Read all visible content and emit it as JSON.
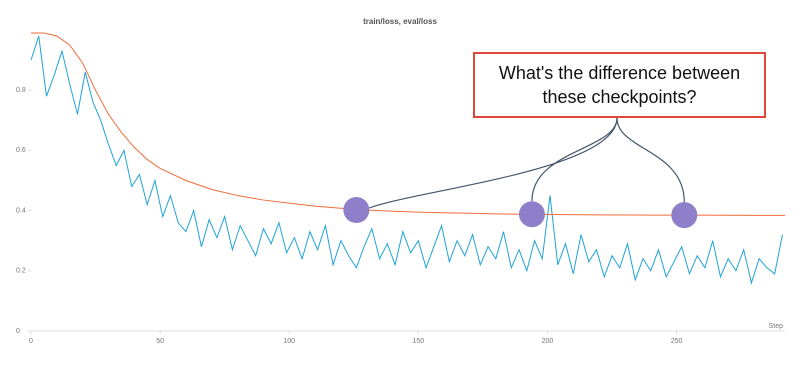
{
  "chart_data": {
    "type": "line",
    "title": "train/loss, eval/loss",
    "xlabel": "Step",
    "xlim": [
      0,
      292
    ],
    "ylim": [
      0,
      1
    ],
    "xticks": [
      0,
      50,
      100,
      150,
      200,
      250
    ],
    "yticks": [
      0,
      0.2,
      0.4,
      0.6,
      0.8
    ],
    "grid": false,
    "series": [
      {
        "name": "train/loss",
        "color": "#1fa3d6",
        "x": [
          0,
          3,
          6,
          9,
          12,
          15,
          18,
          21,
          24,
          27,
          30,
          33,
          36,
          39,
          42,
          45,
          48,
          51,
          54,
          57,
          60,
          63,
          66,
          69,
          72,
          75,
          78,
          81,
          84,
          87,
          90,
          93,
          96,
          99,
          102,
          105,
          108,
          111,
          114,
          117,
          120,
          123,
          126,
          129,
          132,
          135,
          138,
          141,
          144,
          147,
          150,
          153,
          156,
          159,
          162,
          165,
          168,
          171,
          174,
          177,
          180,
          183,
          186,
          189,
          192,
          195,
          198,
          201,
          204,
          207,
          210,
          213,
          216,
          219,
          222,
          225,
          228,
          231,
          234,
          237,
          240,
          243,
          246,
          249,
          252,
          255,
          258,
          261,
          264,
          267,
          270,
          273,
          276,
          279,
          282,
          285,
          288,
          291
        ],
        "values": [
          0.9,
          0.98,
          0.78,
          0.85,
          0.93,
          0.82,
          0.72,
          0.86,
          0.76,
          0.7,
          0.62,
          0.55,
          0.6,
          0.48,
          0.52,
          0.42,
          0.5,
          0.38,
          0.45,
          0.36,
          0.33,
          0.4,
          0.28,
          0.37,
          0.31,
          0.38,
          0.27,
          0.35,
          0.3,
          0.25,
          0.34,
          0.29,
          0.36,
          0.26,
          0.31,
          0.24,
          0.33,
          0.27,
          0.35,
          0.22,
          0.3,
          0.25,
          0.21,
          0.28,
          0.34,
          0.24,
          0.29,
          0.22,
          0.33,
          0.26,
          0.3,
          0.21,
          0.28,
          0.35,
          0.23,
          0.3,
          0.25,
          0.32,
          0.22,
          0.28,
          0.24,
          0.33,
          0.21,
          0.27,
          0.2,
          0.3,
          0.24,
          0.45,
          0.22,
          0.29,
          0.19,
          0.32,
          0.23,
          0.27,
          0.18,
          0.25,
          0.21,
          0.29,
          0.17,
          0.24,
          0.2,
          0.27,
          0.18,
          0.23,
          0.28,
          0.19,
          0.25,
          0.21,
          0.3,
          0.18,
          0.24,
          0.2,
          0.27,
          0.16,
          0.24,
          0.21,
          0.19,
          0.32
        ]
      },
      {
        "name": "eval/loss",
        "color": "#f26b3a",
        "x": [
          0,
          5,
          10,
          15,
          20,
          25,
          30,
          35,
          40,
          45,
          50,
          60,
          70,
          80,
          90,
          100,
          110,
          120,
          130,
          140,
          150,
          160,
          170,
          180,
          190,
          200,
          220,
          240,
          260,
          280,
          292
        ],
        "values": [
          0.99,
          0.99,
          0.98,
          0.95,
          0.89,
          0.8,
          0.72,
          0.66,
          0.61,
          0.57,
          0.54,
          0.5,
          0.47,
          0.45,
          0.435,
          0.425,
          0.415,
          0.408,
          0.402,
          0.398,
          0.395,
          0.393,
          0.391,
          0.389,
          0.388,
          0.387,
          0.386,
          0.385,
          0.385,
          0.384,
          0.384
        ]
      }
    ],
    "annotation": "What's the difference between these checkpoints?",
    "checkpoints": {
      "color": "#8e7fca",
      "x": [
        126,
        194,
        253
      ],
      "y": [
        0.402,
        0.388,
        0.385
      ]
    }
  }
}
